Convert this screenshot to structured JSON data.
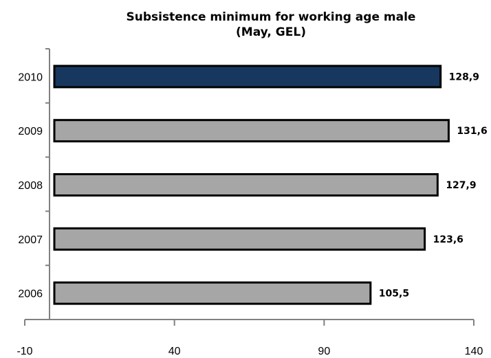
{
  "chart_data": {
    "type": "bar",
    "orientation": "horizontal",
    "title": "Subsistence minimum for working age male",
    "subtitle": "(May, GEL)",
    "categories": [
      "2010",
      "2009",
      "2008",
      "2007",
      "2006"
    ],
    "values": [
      128.9,
      131.6,
      127.9,
      123.6,
      105.5
    ],
    "value_labels": [
      "128,9",
      "131,6",
      "127,9",
      "123,6",
      "105,5"
    ],
    "xlim": [
      -10,
      140
    ],
    "xticks": [
      "-10",
      "40",
      "90",
      "140"
    ],
    "xtick_values": [
      -10,
      40,
      90,
      140
    ],
    "colors": [
      "#17375e",
      "#a6a6a6",
      "#a6a6a6",
      "#a6a6a6",
      "#a6a6a6"
    ],
    "grid": false,
    "legend": "none"
  }
}
